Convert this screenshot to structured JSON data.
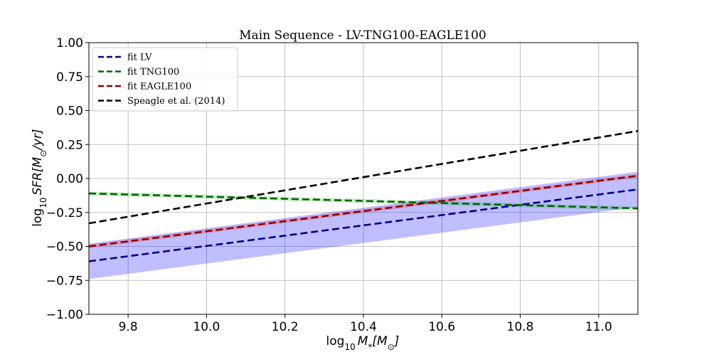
{
  "chart_data": {
    "type": "line",
    "title": "Main Sequence - LV-TNG100-EAGLE100",
    "xlabel_parts": {
      "prefix": "log",
      "sub": "10",
      "var": "M",
      "var_sub": "*",
      "unit_open": "[M",
      "unit_sub": "⊙",
      "unit_close": "]"
    },
    "ylabel_parts": {
      "prefix": "log",
      "sub": "10",
      "var": "SFR",
      "unit_open": "[M",
      "unit_sub": "⊙",
      "unit_close": "/yr]"
    },
    "xlim": [
      9.7,
      11.1
    ],
    "ylim": [
      -1.0,
      1.0
    ],
    "xticks": [
      9.8,
      10.0,
      10.2,
      10.4,
      10.6,
      10.8,
      11.0
    ],
    "xtick_labels": [
      "9.8",
      "10.0",
      "10.2",
      "10.4",
      "10.6",
      "10.8",
      "11.0"
    ],
    "yticks": [
      1.0,
      0.75,
      0.5,
      0.25,
      0.0,
      -0.25,
      -0.5,
      -0.75,
      -1.0
    ],
    "ytick_labels": [
      "1.00",
      "0.75",
      "0.50",
      "0.25",
      "0.00",
      "−0.25",
      "−0.50",
      "−0.75",
      "−1.00"
    ],
    "grid": true,
    "legend_position": "upper-left",
    "series": [
      {
        "name": "fit LV",
        "color": "#00008b",
        "style": "dashed",
        "x": [
          9.7,
          11.1
        ],
        "y": [
          -0.61,
          -0.08
        ]
      },
      {
        "name": "fit TNG100",
        "color": "#006400",
        "style": "dashed",
        "x": [
          9.7,
          11.1
        ],
        "y": [
          -0.11,
          -0.22
        ]
      },
      {
        "name": "fit EAGLE100",
        "color": "#8b0000",
        "style": "dashed",
        "x": [
          9.7,
          11.1
        ],
        "y": [
          -0.5,
          0.02
        ]
      },
      {
        "name": "Speagle et al. (2014)",
        "color": "#000000",
        "style": "dashed",
        "x": [
          9.7,
          11.1
        ],
        "y": [
          -0.33,
          0.35
        ]
      }
    ],
    "bands": [
      {
        "name": "LV scatter",
        "color": "#0000ff",
        "opacity": 0.25,
        "x": [
          9.7,
          11.1
        ],
        "lower": [
          -0.74,
          -0.21
        ],
        "upper": [
          -0.48,
          0.05
        ]
      },
      {
        "name": "EAGLE100 scatter",
        "color": "#ff0000",
        "opacity": 0.2,
        "x": [
          9.7,
          11.1
        ],
        "lower": [
          -0.515,
          0.005
        ],
        "upper": [
          -0.485,
          0.035
        ]
      },
      {
        "name": "TNG100 scatter",
        "color": "#00aa00",
        "opacity": 0.2,
        "x": [
          9.7,
          11.1
        ],
        "lower": [
          -0.125,
          -0.235
        ],
        "upper": [
          -0.095,
          -0.205
        ]
      }
    ]
  }
}
